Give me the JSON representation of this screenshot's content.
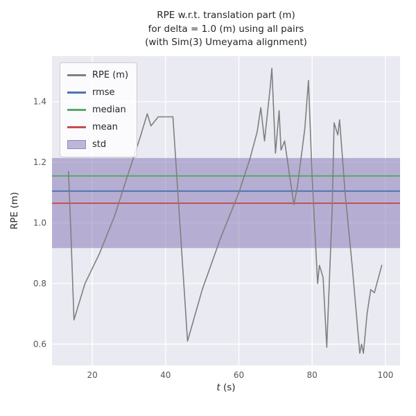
{
  "title_lines": [
    "RPE w.r.t. translation part (m)",
    "for delta = 1.0 (m) using all pairs",
    "(with Sim(3) Umeyama alignment)"
  ],
  "chart_data": {
    "type": "line",
    "title": "RPE w.r.t. translation part (m) for delta = 1.0 (m) using all pairs (with Sim(3) Umeyama alignment)",
    "xlabel_var": "t",
    "xlabel_unit": " (s)",
    "ylabel": "RPE (m)",
    "xlim": [
      9,
      104
    ],
    "ylim": [
      0.53,
      1.55
    ],
    "xticks": [
      20,
      40,
      60,
      80,
      100
    ],
    "yticks": [
      0.6,
      0.8,
      1.0,
      1.2,
      1.4
    ],
    "grid": true,
    "legend_position": "upper left",
    "stats": {
      "rmse": 1.105,
      "median": 1.155,
      "mean": 1.065,
      "std_low": 0.917,
      "std_high": 1.214
    },
    "series": {
      "name": "RPE (m)",
      "points": [
        [
          13.5,
          1.17
        ],
        [
          14.2,
          0.95
        ],
        [
          15,
          0.68
        ],
        [
          18,
          0.8
        ],
        [
          22,
          0.9
        ],
        [
          26,
          1.02
        ],
        [
          30,
          1.17
        ],
        [
          33,
          1.28
        ],
        [
          35,
          1.36
        ],
        [
          36,
          1.32
        ],
        [
          38,
          1.35
        ],
        [
          42,
          1.35
        ],
        [
          46,
          0.61
        ],
        [
          50,
          0.78
        ],
        [
          55,
          0.95
        ],
        [
          60,
          1.1
        ],
        [
          63,
          1.21
        ],
        [
          65,
          1.3
        ],
        [
          66,
          1.38
        ],
        [
          67,
          1.27
        ],
        [
          68.5,
          1.44
        ],
        [
          69,
          1.51
        ],
        [
          70,
          1.23
        ],
        [
          71,
          1.37
        ],
        [
          71.5,
          1.24
        ],
        [
          72.5,
          1.27
        ],
        [
          75,
          1.06
        ],
        [
          76,
          1.12
        ],
        [
          78,
          1.31
        ],
        [
          79,
          1.47
        ],
        [
          80,
          1.15
        ],
        [
          81.5,
          0.8
        ],
        [
          82,
          0.86
        ],
        [
          83,
          0.82
        ],
        [
          84,
          0.59
        ],
        [
          85.5,
          1.05
        ],
        [
          86,
          1.33
        ],
        [
          87,
          1.29
        ],
        [
          87.5,
          1.34
        ],
        [
          89,
          1.1
        ],
        [
          91,
          0.85
        ],
        [
          93,
          0.57
        ],
        [
          93.5,
          0.6
        ],
        [
          94,
          0.57
        ],
        [
          95,
          0.7
        ],
        [
          96,
          0.78
        ],
        [
          97,
          0.77
        ],
        [
          99,
          0.86
        ]
      ]
    },
    "legend": [
      {
        "label": "RPE (m)",
        "type": "line",
        "color": "#7f7f7f"
      },
      {
        "label": "rmse",
        "type": "line",
        "color": "#4c72b0"
      },
      {
        "label": "median",
        "type": "line",
        "color": "#55a868"
      },
      {
        "label": "mean",
        "type": "line",
        "color": "#c44e52"
      },
      {
        "label": "std",
        "type": "patch",
        "color": "#8172b2"
      }
    ],
    "colors": {
      "rpe_line": "#7f7f7f",
      "rmse_line": "#4c72b0",
      "median_line": "#55a868",
      "mean_line": "#c44e52",
      "std_band": "#8172b2",
      "axes_bg": "#eaeaf2",
      "grid": "#ffffff"
    }
  }
}
